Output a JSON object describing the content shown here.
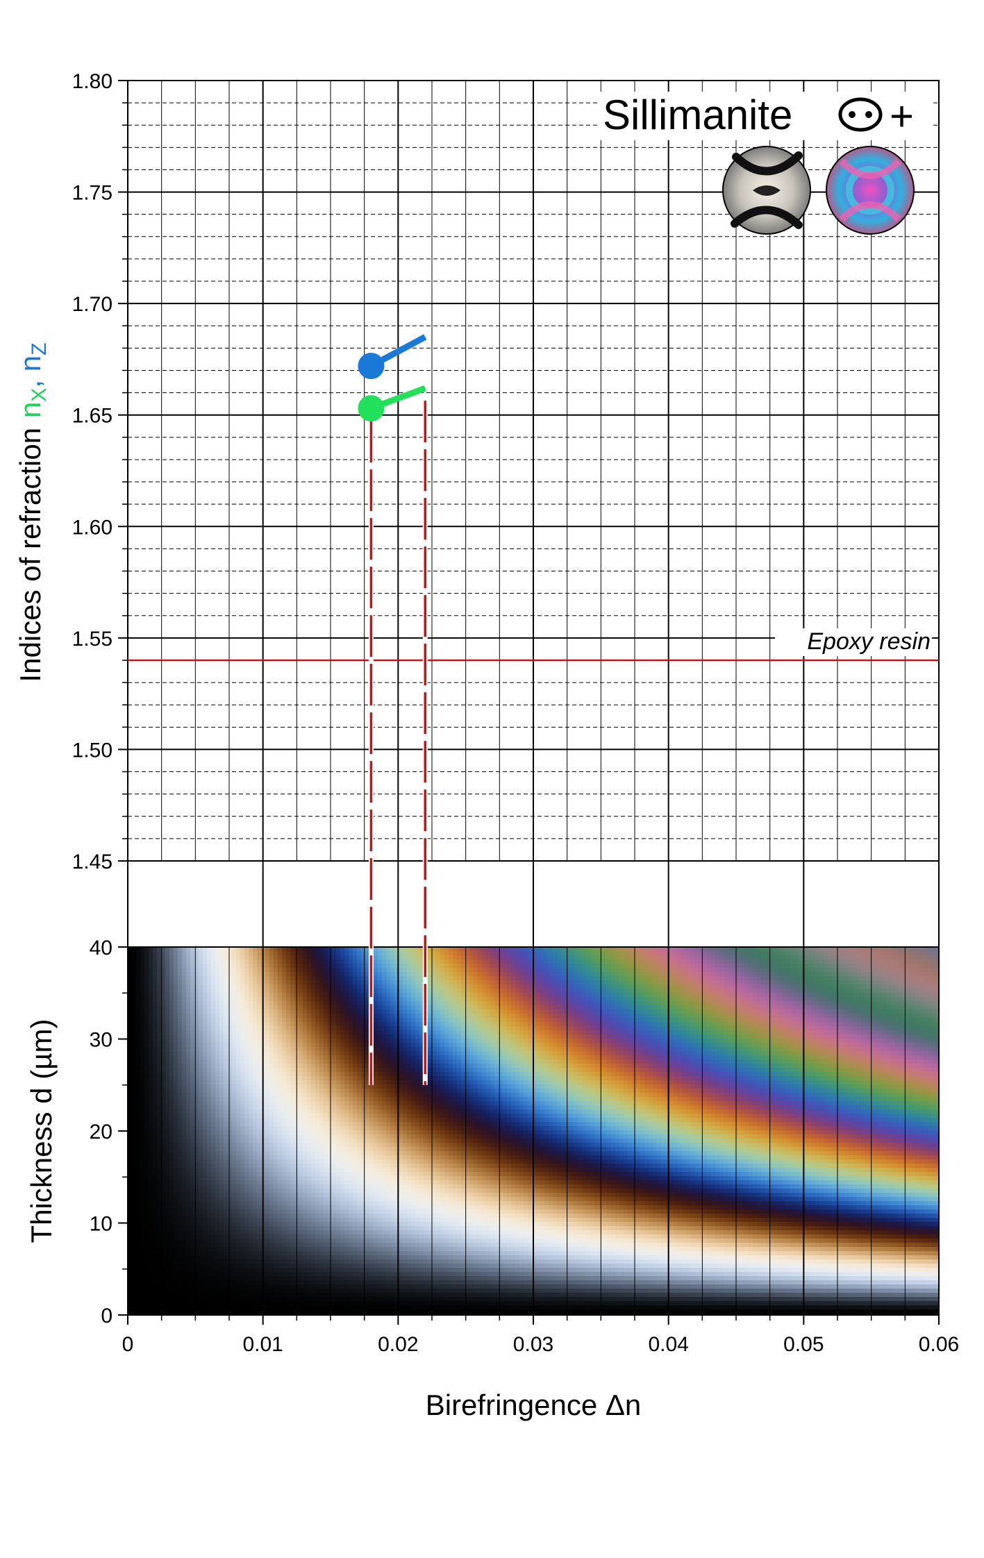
{
  "chart_data": [
    {
      "type": "line",
      "panel": "indices",
      "title": "Sillimanite",
      "sign": "+",
      "ylabel": {
        "text": "Indices of refraction",
        "n_x": "n",
        "n_x_sub": "X",
        "n_z": "n",
        "n_z_sub": "Z",
        "separator": ", "
      },
      "ylim": [
        1.45,
        1.8
      ],
      "yticks": [
        "1.80",
        "1.75",
        "1.70",
        "1.65",
        "1.60",
        "1.55",
        "1.50",
        "1.45"
      ],
      "xlim": [
        0,
        0.06
      ],
      "grid": true,
      "reference_line": {
        "label": "Epoxy resin",
        "y": 1.54,
        "color": "#d01010"
      },
      "series": [
        {
          "name": "n_Z",
          "color": "#1a78d6",
          "start": {
            "x": 0.018,
            "y": 1.672
          },
          "end": {
            "x": 0.022,
            "y": 1.685
          }
        },
        {
          "name": "n_X",
          "color": "#22e05a",
          "start": {
            "x": 0.018,
            "y": 1.653
          },
          "end": {
            "x": 0.022,
            "y": 1.662
          }
        }
      ],
      "birefringence_range_lines": [
        {
          "x": 0.018,
          "y_top": 1.653,
          "d_bottom": 25,
          "color": "#d01010"
        },
        {
          "x": 0.022,
          "y_top": 1.662,
          "d_bottom": 25,
          "color": "#d01010"
        }
      ],
      "symbols": {
        "biaxial_icon": "biaxial-interference-figure-icon",
        "conoscopic_images": [
          "grey-interference-figure",
          "colored-interference-figure"
        ]
      }
    },
    {
      "type": "heatmap",
      "panel": "michel-levy",
      "xlabel": "Birefringence  Δn",
      "ylabel": "Thickness  d (µm)",
      "xlim": [
        0,
        0.06
      ],
      "ylim": [
        0,
        40
      ],
      "xticks": [
        "0",
        "0.01",
        "0.02",
        "0.03",
        "0.04",
        "0.05",
        "0.06"
      ],
      "yticks": [
        "0",
        "10",
        "20",
        "30",
        "40"
      ],
      "color_function": "retardation = birefringence x thickness (interference colors)",
      "grid": true
    }
  ]
}
